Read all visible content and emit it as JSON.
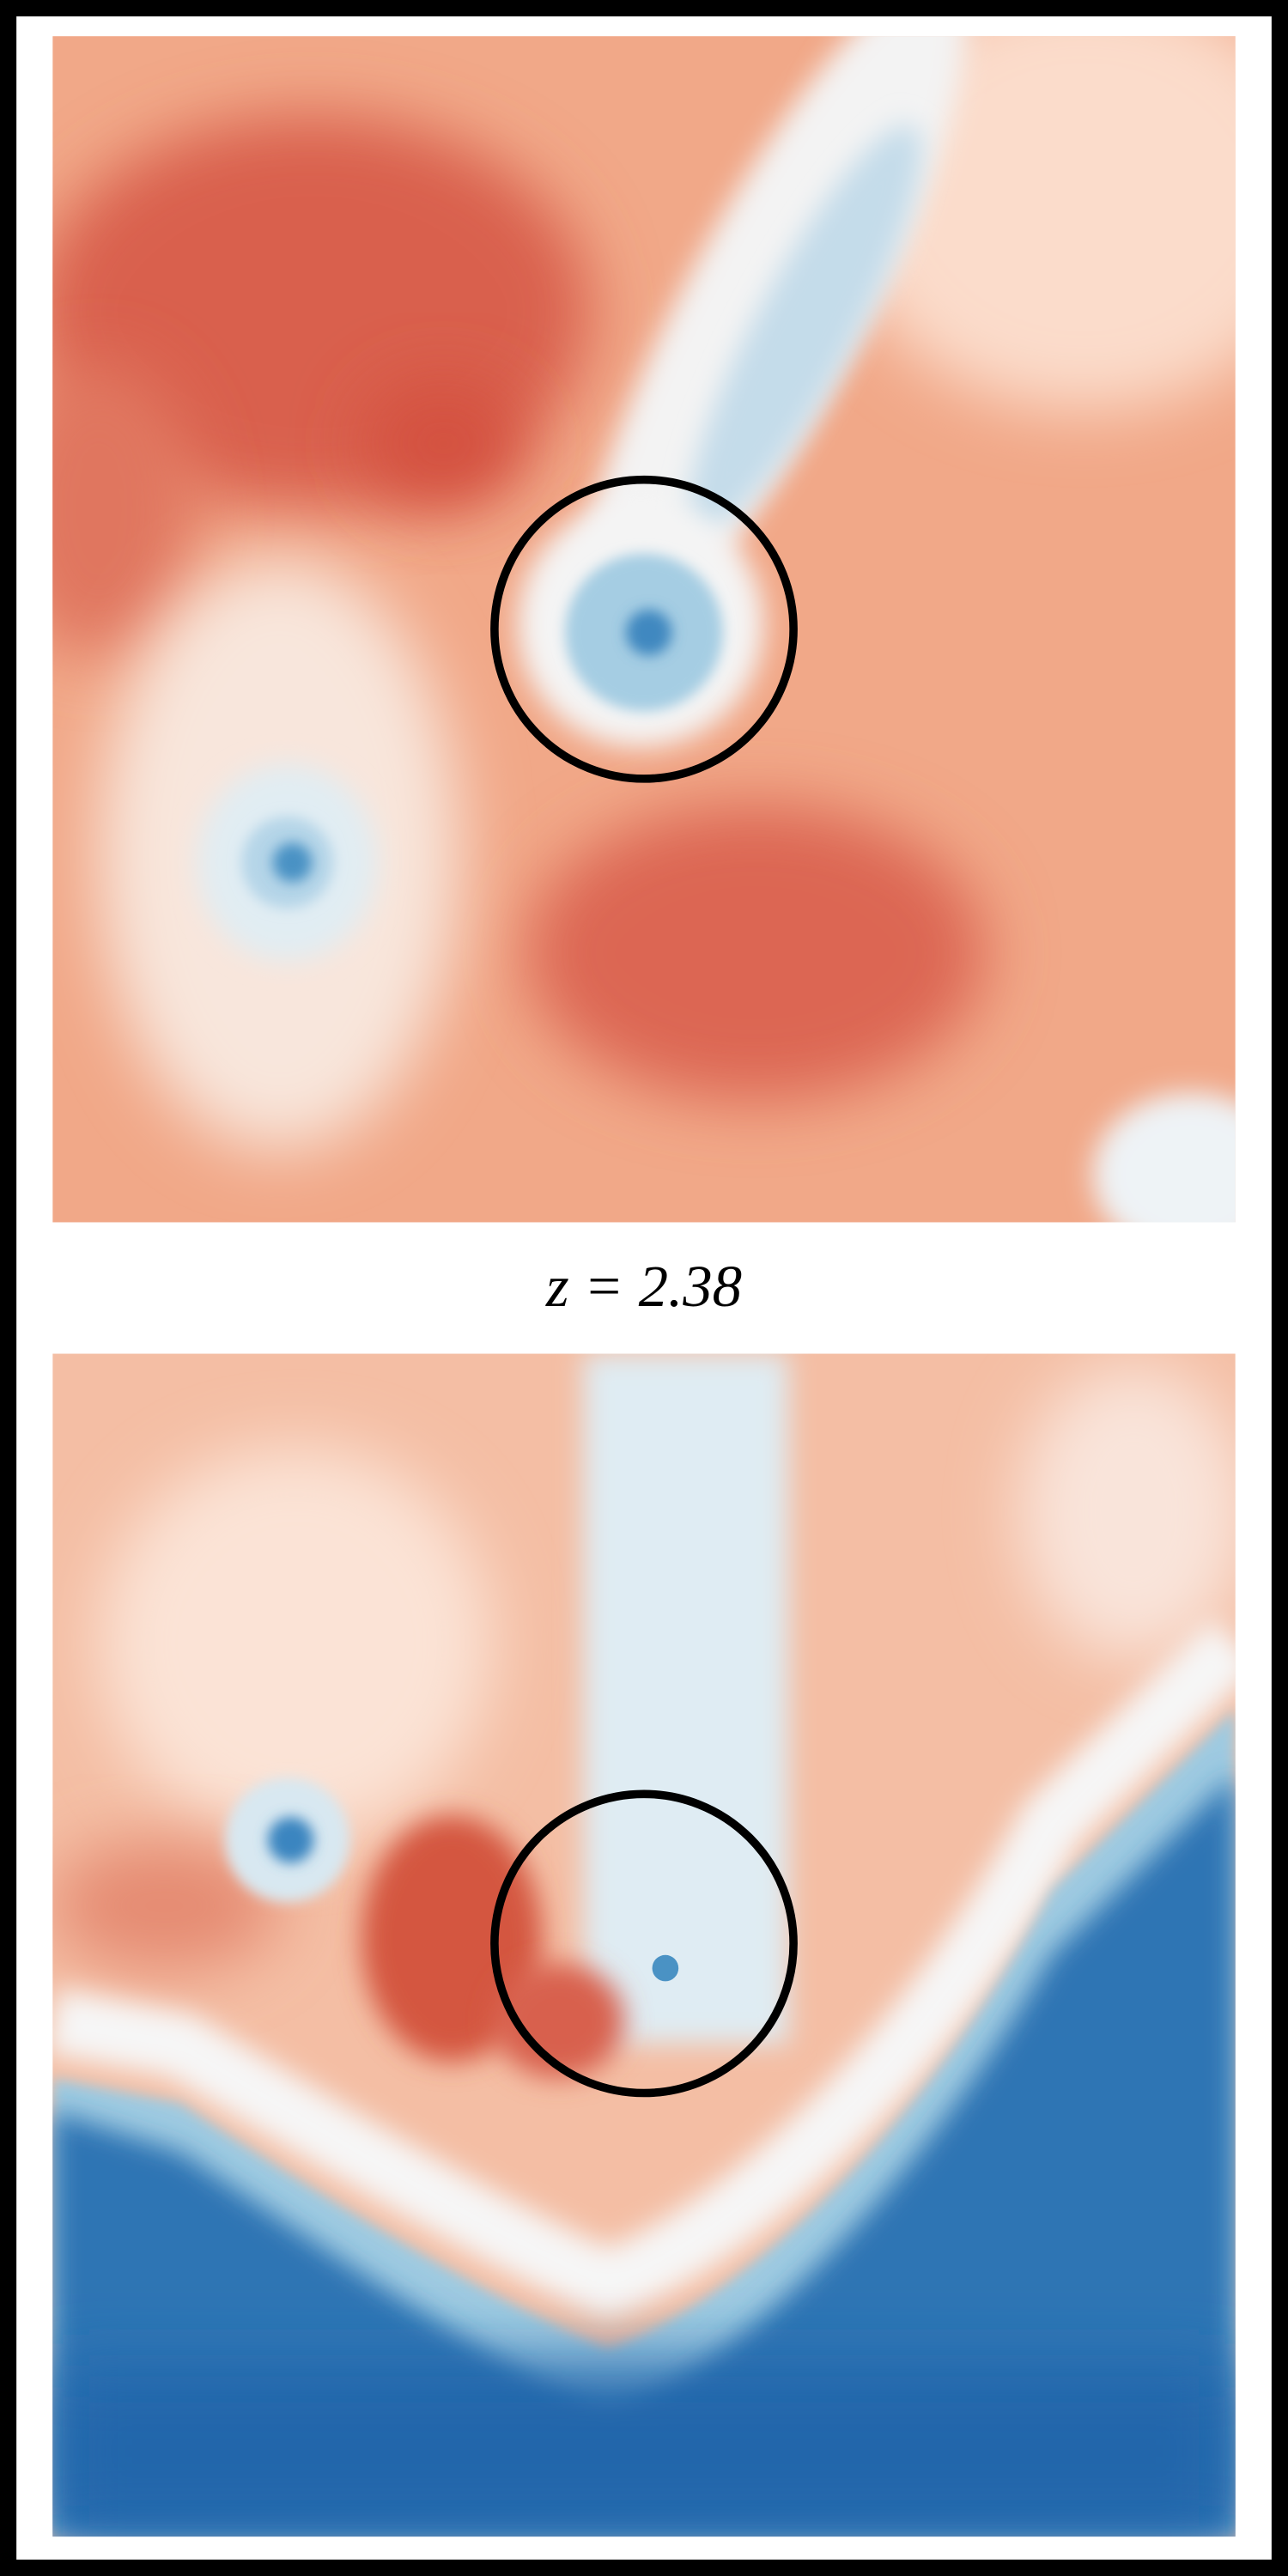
{
  "label": "z = 2.38"
}
